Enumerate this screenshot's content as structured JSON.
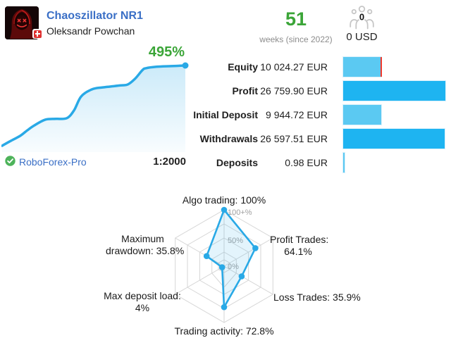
{
  "header": {
    "title": "Chaoszillator NR1",
    "author": "Oleksandr Powchan",
    "country": "Switzerland",
    "growth_label": "495%",
    "broker": "RoboForex-Pro",
    "leverage": "1:2000"
  },
  "summary": {
    "weeks_value": "51",
    "weeks_caption": "weeks (since 2022)",
    "subscribers_count": "0",
    "subscribers_funds": "0 USD"
  },
  "stats": {
    "currency": "EUR",
    "rows": [
      {
        "label": "Equity",
        "value": "10 024.27 EUR",
        "amount": 10024.27,
        "style": "light",
        "marker": true
      },
      {
        "label": "Profit",
        "value": "26 759.90 EUR",
        "amount": 26759.9,
        "style": "dark",
        "marker": false
      },
      {
        "label": "Initial Deposit",
        "value": "9 944.72 EUR",
        "amount": 9944.72,
        "style": "light",
        "marker": false
      },
      {
        "label": "Withdrawals",
        "value": "26 597.51 EUR",
        "amount": 26597.51,
        "style": "dark",
        "marker": false
      },
      {
        "label": "Deposits",
        "value": "0.98 EUR",
        "amount": 0.98,
        "style": "light",
        "marker": false
      }
    ]
  },
  "colors": {
    "accent_blue": "#29a9e6",
    "link_blue": "#3a6fc6",
    "green": "#3ba538",
    "bar_light": "#5bc9f2",
    "bar_dark": "#1eb4f1",
    "marker_red": "#f3392b",
    "grid_gray": "#d6d6d6"
  },
  "chart_data": [
    {
      "type": "area",
      "title": "Growth curve",
      "final_label": "495%",
      "x_unit": "weeks",
      "y_unit": "%",
      "x": [
        0,
        2,
        5,
        7,
        9,
        12,
        15,
        18,
        20,
        22,
        25,
        28,
        33,
        35,
        37,
        39,
        40,
        43,
        47,
        51
      ],
      "values": [
        0,
        25,
        61,
        95,
        126,
        161,
        166,
        170,
        218,
        304,
        348,
        360,
        372,
        378,
        413,
        465,
        478,
        487,
        491,
        495
      ],
      "xlim": [
        0,
        51
      ],
      "ylim": [
        0,
        495
      ],
      "grid": false,
      "color": "#29a9e6"
    },
    {
      "type": "bar",
      "orientation": "horizontal",
      "categories": [
        "Equity",
        "Profit",
        "Initial Deposit",
        "Withdrawals",
        "Deposits"
      ],
      "values": [
        10024.27,
        26759.9,
        9944.72,
        26597.51,
        0.98
      ],
      "unit": "EUR",
      "colors": [
        "#5bc9f2",
        "#1eb4f1",
        "#5bc9f2",
        "#1eb4f1",
        "#5bc9f2"
      ],
      "marker": {
        "category": "Equity",
        "color": "#f3392b"
      }
    },
    {
      "type": "radar",
      "range": [
        0,
        100
      ],
      "ring_labels": [
        "0%",
        "50%",
        "100+%"
      ],
      "color": "#29a9e6",
      "axes": [
        {
          "label": "Algo trading: 100%",
          "lines": [
            "Algo trading: 100%"
          ],
          "value": 100
        },
        {
          "label": "Profit Trades: 64.1%",
          "lines": [
            "Profit Trades:",
            "64.1%"
          ],
          "value": 64.1
        },
        {
          "label": "Loss Trades: 35.9%",
          "lines": [
            "Loss Trades: 35.9%"
          ],
          "value": 35.9
        },
        {
          "label": "Trading activity: 72.8%",
          "lines": [
            "Trading activity: 72.8%"
          ],
          "value": 72.8
        },
        {
          "label": "Max deposit load: 4%",
          "lines": [
            "Max deposit load:",
            "4%"
          ],
          "value": 4
        },
        {
          "label": "Maximum drawdown: 35.8%",
          "lines": [
            "Maximum",
            "drawdown: 35.8%"
          ],
          "value": 35.8
        }
      ]
    }
  ]
}
